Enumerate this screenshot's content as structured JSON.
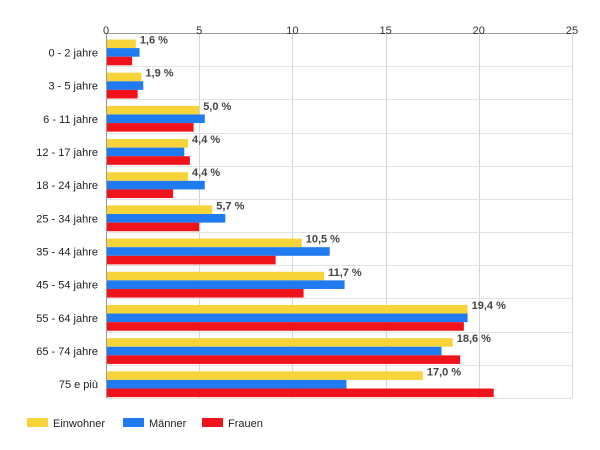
{
  "chart_data": {
    "type": "bar",
    "orientation": "horizontal",
    "categories": [
      "0 - 2 jahre",
      "3 - 5 jahre",
      "6 - 11 jahre",
      "12 - 17 jahre",
      "18 - 24 jahre",
      "25 - 34 jahre",
      "35 - 44 jahre",
      "45 - 54 jahre",
      "55 - 64 jahre",
      "65 - 74 jahre",
      "75 e più"
    ],
    "series": [
      {
        "name": "Einwohner",
        "color": "#f7d43a",
        "values": [
          1.6,
          1.9,
          5.0,
          4.4,
          4.4,
          5.7,
          10.5,
          11.7,
          19.4,
          18.6,
          17.0
        ]
      },
      {
        "name": "Männer",
        "color": "#1f7bef",
        "values": [
          1.8,
          2.0,
          5.3,
          4.2,
          5.3,
          6.4,
          12.0,
          12.8,
          19.4,
          18.0,
          12.9
        ]
      },
      {
        "name": "Frauen",
        "color": "#f0131c",
        "values": [
          1.4,
          1.7,
          4.7,
          4.5,
          3.6,
          5.0,
          9.1,
          10.6,
          19.2,
          19.0,
          20.8
        ]
      }
    ],
    "data_labels": [
      "1,6 %",
      "1,9 %",
      "5,0 %",
      "4,4 %",
      "4,4 %",
      "5,7 %",
      "10,5 %",
      "11,7 %",
      "19,4 %",
      "18,6 %",
      "17,0 %"
    ],
    "x_ticks": [
      "0",
      "5",
      "10",
      "15",
      "20",
      "25"
    ],
    "xlim": [
      0,
      25
    ],
    "grid": true,
    "legend_position": "bottom-left",
    "title": "",
    "xlabel": "",
    "ylabel": ""
  }
}
